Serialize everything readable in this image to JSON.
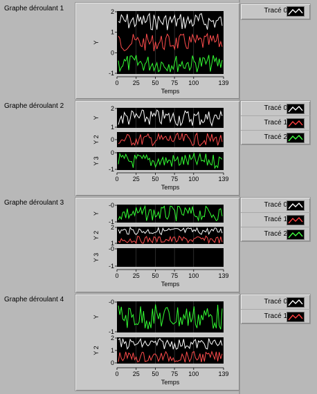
{
  "graphs": [
    {
      "title": "Graphe déroulant 1",
      "xlabel": "Temps",
      "xticks": [
        "0",
        "25",
        "50",
        "75",
        "100",
        "139"
      ],
      "plots": [
        {
          "ylabel": "Y",
          "ticks": [
            "2",
            "1",
            "0",
            "-1"
          ],
          "traces": [
            "white",
            "red",
            "green"
          ]
        }
      ],
      "legend": [
        {
          "label": "Tracé 0",
          "color": "#ffffff"
        }
      ]
    },
    {
      "title": "Graphe déroulant 2",
      "xlabel": "Temps",
      "xticks": [
        "0",
        "25",
        "50",
        "75",
        "100",
        "139"
      ],
      "plots": [
        {
          "ylabel": "Y",
          "ticks": [
            "2",
            "1"
          ],
          "traces": [
            "white"
          ]
        },
        {
          "ylabel": "Y 2",
          "ticks": [
            "0"
          ],
          "traces": [
            "red"
          ]
        },
        {
          "ylabel": "Y 3",
          "ticks": [
            "0",
            "-1"
          ],
          "traces": [
            "green"
          ]
        }
      ],
      "legend": [
        {
          "label": "Tracé 0",
          "color": "#ffffff"
        },
        {
          "label": "Tracé 1",
          "color": "#ff4040"
        },
        {
          "label": "Tracé 2",
          "color": "#40ff40"
        }
      ]
    },
    {
      "title": "Graphe déroulant 3",
      "xlabel": "Temps",
      "xticks": [
        "0",
        "25",
        "50",
        "75",
        "100",
        "139"
      ],
      "plots": [
        {
          "ylabel": "Y",
          "ticks": [
            "-0",
            "-1"
          ],
          "traces": [
            "green"
          ]
        },
        {
          "ylabel": "Y 2",
          "ticks": [
            "2",
            "1"
          ],
          "traces": [
            "white",
            "red"
          ]
        },
        {
          "ylabel": "Y 3",
          "ticks": [
            "-0",
            "-1"
          ],
          "traces": []
        }
      ],
      "legend": [
        {
          "label": "Tracé 0",
          "color": "#ffffff"
        },
        {
          "label": "Tracé 1",
          "color": "#ff4040"
        },
        {
          "label": "Tracé 2",
          "color": "#40ff40"
        }
      ]
    },
    {
      "title": "Graphe déroulant 4",
      "xlabel": "Temps",
      "xticks": [
        "0",
        "25",
        "50",
        "75",
        "100",
        "139"
      ],
      "plots": [
        {
          "ylabel": "Y",
          "ticks": [
            "-0",
            "-1"
          ],
          "traces": [
            "green"
          ]
        },
        {
          "ylabel": "Y 2",
          "ticks": [
            "2",
            "1",
            "0"
          ],
          "traces": [
            "white",
            "red"
          ]
        }
      ],
      "legend": [
        {
          "label": "Tracé 0",
          "color": "#ffffff"
        },
        {
          "label": "Tracé 1",
          "color": "#ff4040"
        }
      ]
    }
  ],
  "colors": {
    "white": "#ffffff",
    "red": "#ff4c4c",
    "green": "#33ff33",
    "plot_bg": "#000000",
    "grid": "#9a9a9a"
  }
}
